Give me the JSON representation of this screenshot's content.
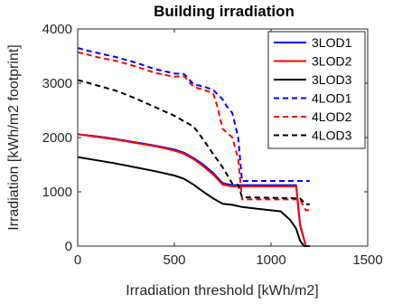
{
  "chart_data": {
    "type": "line",
    "title": "Building irradiation",
    "xlabel": "Irradiation threshold [kWh/m2]",
    "ylabel": "Irradiation [kWh/m2 footprint]",
    "xlim": [
      0,
      1500
    ],
    "ylim": [
      0,
      4000
    ],
    "xticks": [
      0,
      500,
      1000,
      1500
    ],
    "yticks": [
      0,
      1000,
      2000,
      3000,
      4000
    ],
    "xtick_labels": [
      "0",
      "500",
      "1000",
      "1500"
    ],
    "ytick_labels": [
      "0",
      "1000",
      "2000",
      "3000",
      "4000"
    ],
    "grid": false,
    "legend_position": "top-right",
    "series": [
      {
        "name": "3LOD1",
        "color": "#0000ff",
        "style": "solid",
        "x": [
          0,
          100,
          200,
          300,
          400,
          500,
          550,
          600,
          650,
          700,
          750,
          800,
          830,
          1000,
          1100,
          1130,
          1150,
          1180,
          1200
        ],
        "y": [
          2060,
          2020,
          1970,
          1910,
          1850,
          1780,
          1720,
          1620,
          1500,
          1350,
          1160,
          1120,
          1120,
          1120,
          1120,
          1120,
          400,
          0,
          0
        ]
      },
      {
        "name": "3LOD2",
        "color": "#ff0000",
        "style": "solid",
        "x": [
          0,
          100,
          200,
          300,
          400,
          500,
          550,
          600,
          650,
          700,
          750,
          800,
          830,
          1000,
          1100,
          1130,
          1150,
          1180,
          1200
        ],
        "y": [
          2060,
          2010,
          1960,
          1900,
          1840,
          1760,
          1700,
          1600,
          1470,
          1320,
          1130,
          1100,
          1100,
          1100,
          1100,
          1100,
          380,
          0,
          0
        ]
      },
      {
        "name": "3LOD3",
        "color": "#000000",
        "style": "solid",
        "x": [
          0,
          100,
          200,
          300,
          400,
          500,
          550,
          600,
          650,
          700,
          750,
          800,
          850,
          950,
          1050,
          1100,
          1130,
          1150,
          1170,
          1200
        ],
        "y": [
          1640,
          1580,
          1520,
          1450,
          1380,
          1300,
          1240,
          1130,
          1000,
          880,
          780,
          760,
          720,
          680,
          640,
          480,
          320,
          100,
          0,
          0
        ]
      },
      {
        "name": "4LOD1",
        "color": "#0000ff",
        "style": "dashed",
        "x": [
          0,
          50,
          100,
          200,
          300,
          400,
          500,
          550,
          600,
          650,
          700,
          750,
          770,
          800,
          830,
          850,
          1200
        ],
        "y": [
          3650,
          3600,
          3560,
          3480,
          3380,
          3260,
          3180,
          3170,
          2980,
          2940,
          2880,
          2700,
          2580,
          2450,
          2000,
          1200,
          1200
        ]
      },
      {
        "name": "4LOD2",
        "color": "#ff0000",
        "style": "dashed",
        "x": [
          0,
          50,
          100,
          200,
          300,
          400,
          500,
          550,
          600,
          650,
          700,
          720,
          750,
          800,
          830,
          850,
          1150,
          1180,
          1200
        ],
        "y": [
          3570,
          3530,
          3480,
          3410,
          3310,
          3190,
          3120,
          3130,
          2930,
          2880,
          2820,
          2600,
          2160,
          2000,
          1600,
          860,
          860,
          660,
          660
        ]
      },
      {
        "name": "4LOD3",
        "color": "#000000",
        "style": "dashed",
        "x": [
          0,
          50,
          100,
          200,
          300,
          400,
          500,
          600,
          650,
          700,
          750,
          800,
          830,
          850,
          1150,
          1180,
          1200
        ],
        "y": [
          3060,
          3010,
          2960,
          2860,
          2720,
          2560,
          2400,
          2200,
          1960,
          1700,
          1450,
          1150,
          1130,
          900,
          880,
          770,
          770
        ]
      }
    ]
  }
}
